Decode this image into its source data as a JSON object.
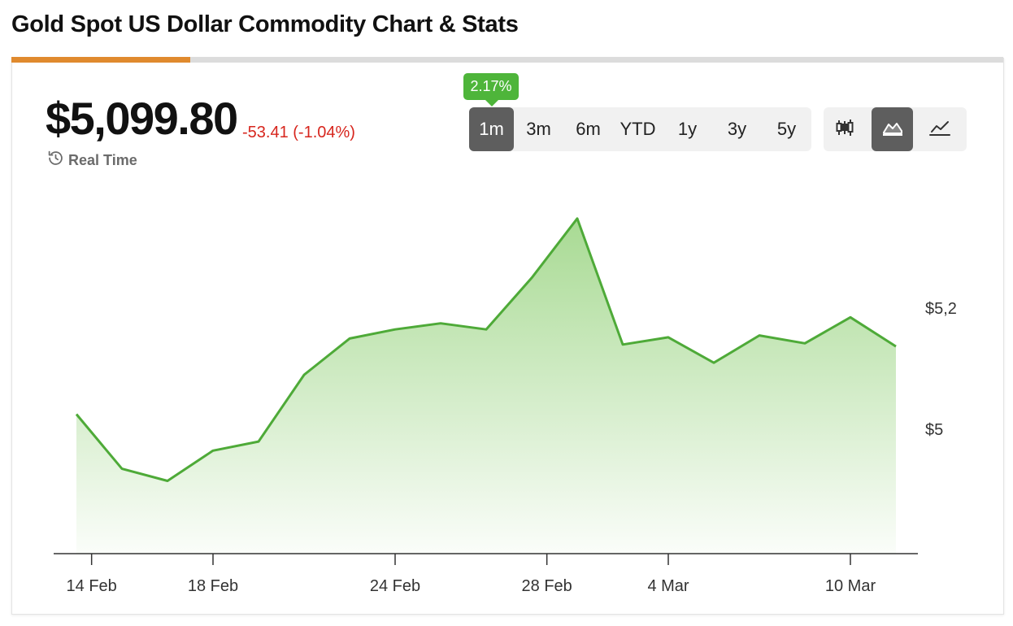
{
  "page": {
    "title": "Gold Spot US Dollar Commodity Chart & Stats"
  },
  "progress": {
    "fraction": 0.18,
    "color": "#e08a2e"
  },
  "quote": {
    "price": "$5,099.80",
    "change": "-53.41 (-1.04%)",
    "change_color": "#d7261e",
    "realtime_icon": "history-clock-icon",
    "realtime_label": "Real Time"
  },
  "range": {
    "badge": "2.17%",
    "options": [
      "1m",
      "3m",
      "6m",
      "YTD",
      "1y",
      "3y",
      "5y"
    ],
    "selected": "1m"
  },
  "chart_types": {
    "options": [
      "candlestick-icon",
      "area-chart-icon",
      "line-chart-icon"
    ],
    "selected": "area-chart-icon"
  },
  "chart_data": {
    "type": "area",
    "line_color": "#4eaa38",
    "fill_color": "#a8da93",
    "x_tick_labels": [
      "14 Feb",
      "18 Feb",
      "24 Feb",
      "28 Feb",
      "4 Mar",
      "10 Mar"
    ],
    "x_tick_dates": [
      "2026-02-14",
      "2026-02-18",
      "2026-02-24",
      "2026-02-28",
      "2026-03-04",
      "2026-03-10"
    ],
    "y_tick_labels": [
      "$5,2",
      "$5"
    ],
    "y_tick_values": [
      5200,
      5000
    ],
    "ylim": [
      4795,
      5400
    ],
    "x": [
      "2026-02-13",
      "2026-02-16",
      "2026-02-17",
      "2026-02-18",
      "2026-02-19",
      "2026-02-20",
      "2026-02-23",
      "2026-02-24",
      "2026-02-25",
      "2026-02-26",
      "2026-02-27",
      "2026-03-02",
      "2026-03-03",
      "2026-03-04",
      "2026-03-05",
      "2026-03-06",
      "2026-03-09",
      "2026-03-10",
      "2026-03-11"
    ],
    "values": [
      5025,
      4935,
      4915,
      4965,
      4980,
      5090,
      5150,
      5165,
      5175,
      5165,
      5250,
      5348,
      5140,
      5152,
      5110,
      5155,
      5142,
      5185,
      5137
    ]
  }
}
